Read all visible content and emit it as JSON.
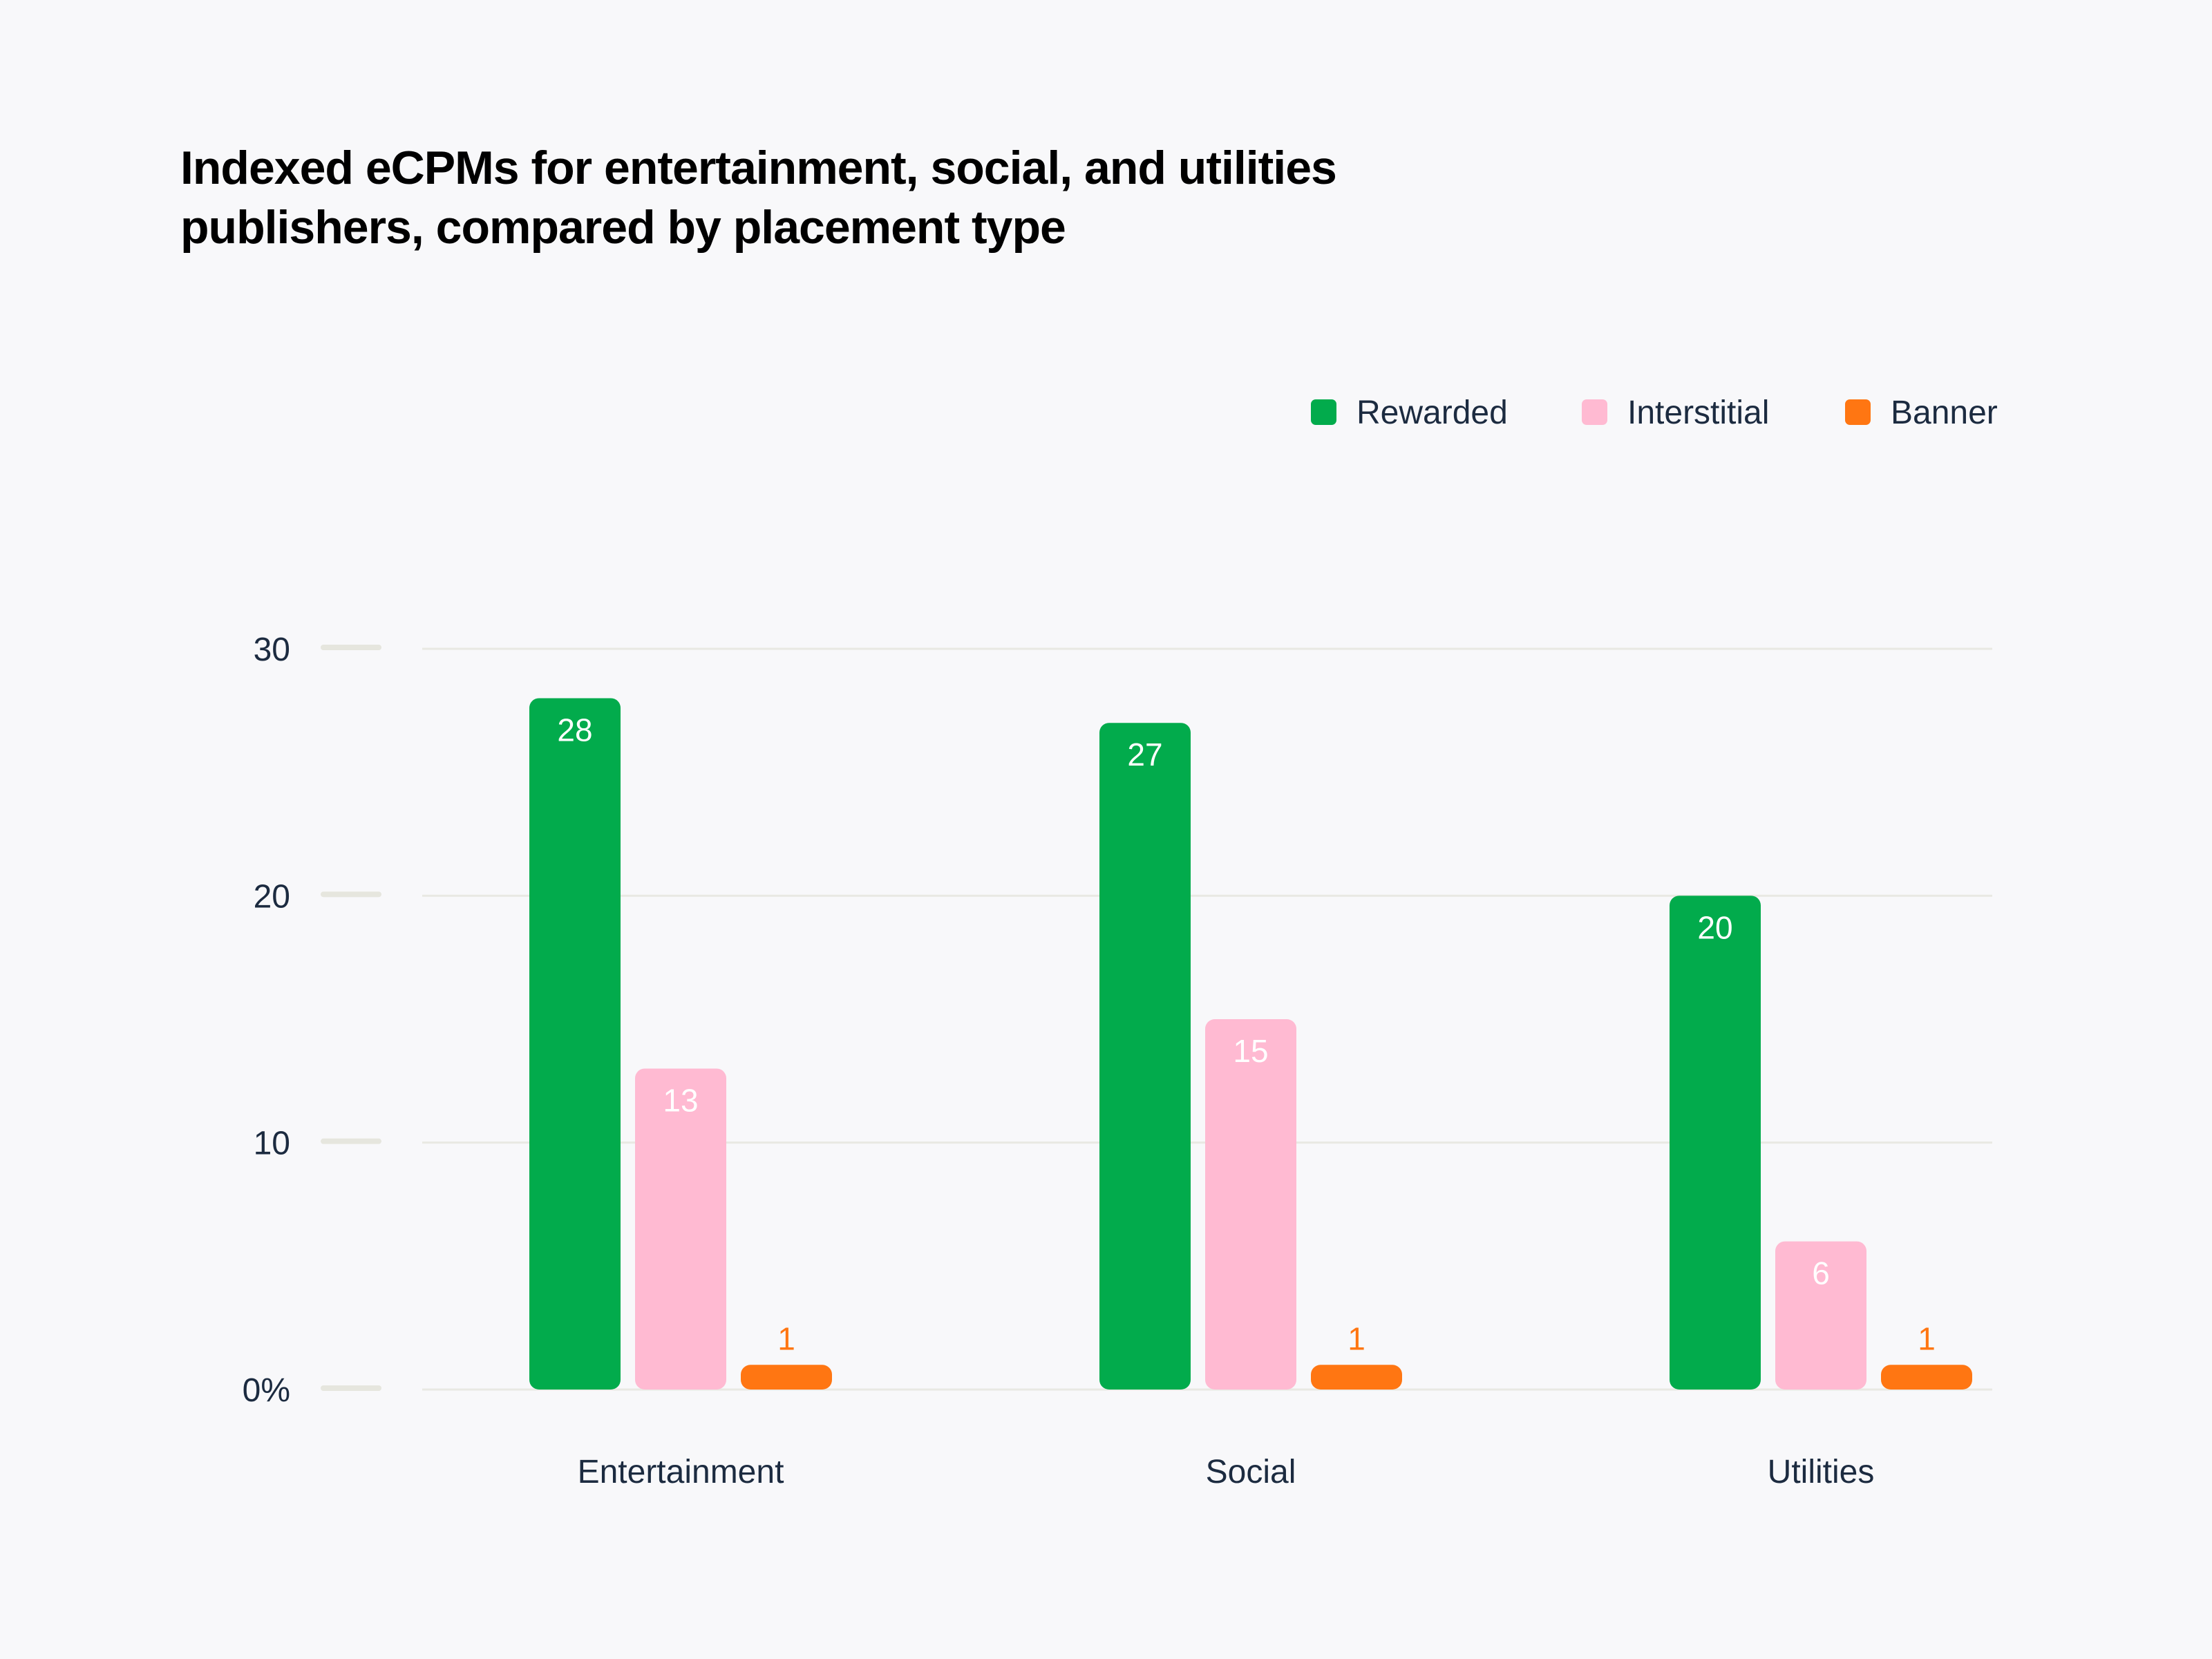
{
  "chart_data": {
    "type": "bar",
    "title": [
      "Indexed eCPMs for entertainment, social, and utilities",
      "publishers, compared by placement type"
    ],
    "categories": [
      "Entertainment",
      "Social",
      "Utilities"
    ],
    "series": [
      {
        "name": "Rewarded",
        "color": "#02ab4c",
        "label_color": "#ffffff",
        "values": [
          28,
          27,
          20
        ]
      },
      {
        "name": "Interstitial",
        "color": "#ffbad2",
        "label_color": "#ffffff",
        "values": [
          13,
          15,
          6
        ]
      },
      {
        "name": "Banner",
        "color": "#ff7612",
        "label_color": "#ff7612",
        "values": [
          1,
          1,
          1
        ]
      }
    ],
    "yticks": [
      {
        "value": 0,
        "label": "0%"
      },
      {
        "value": 10,
        "label": "10"
      },
      {
        "value": 20,
        "label": "20"
      },
      {
        "value": 30,
        "label": "30"
      }
    ],
    "ylim": [
      0,
      30
    ],
    "xlabel": "",
    "ylabel": "",
    "grid": true,
    "legend": "top-right",
    "data_labels": true
  }
}
